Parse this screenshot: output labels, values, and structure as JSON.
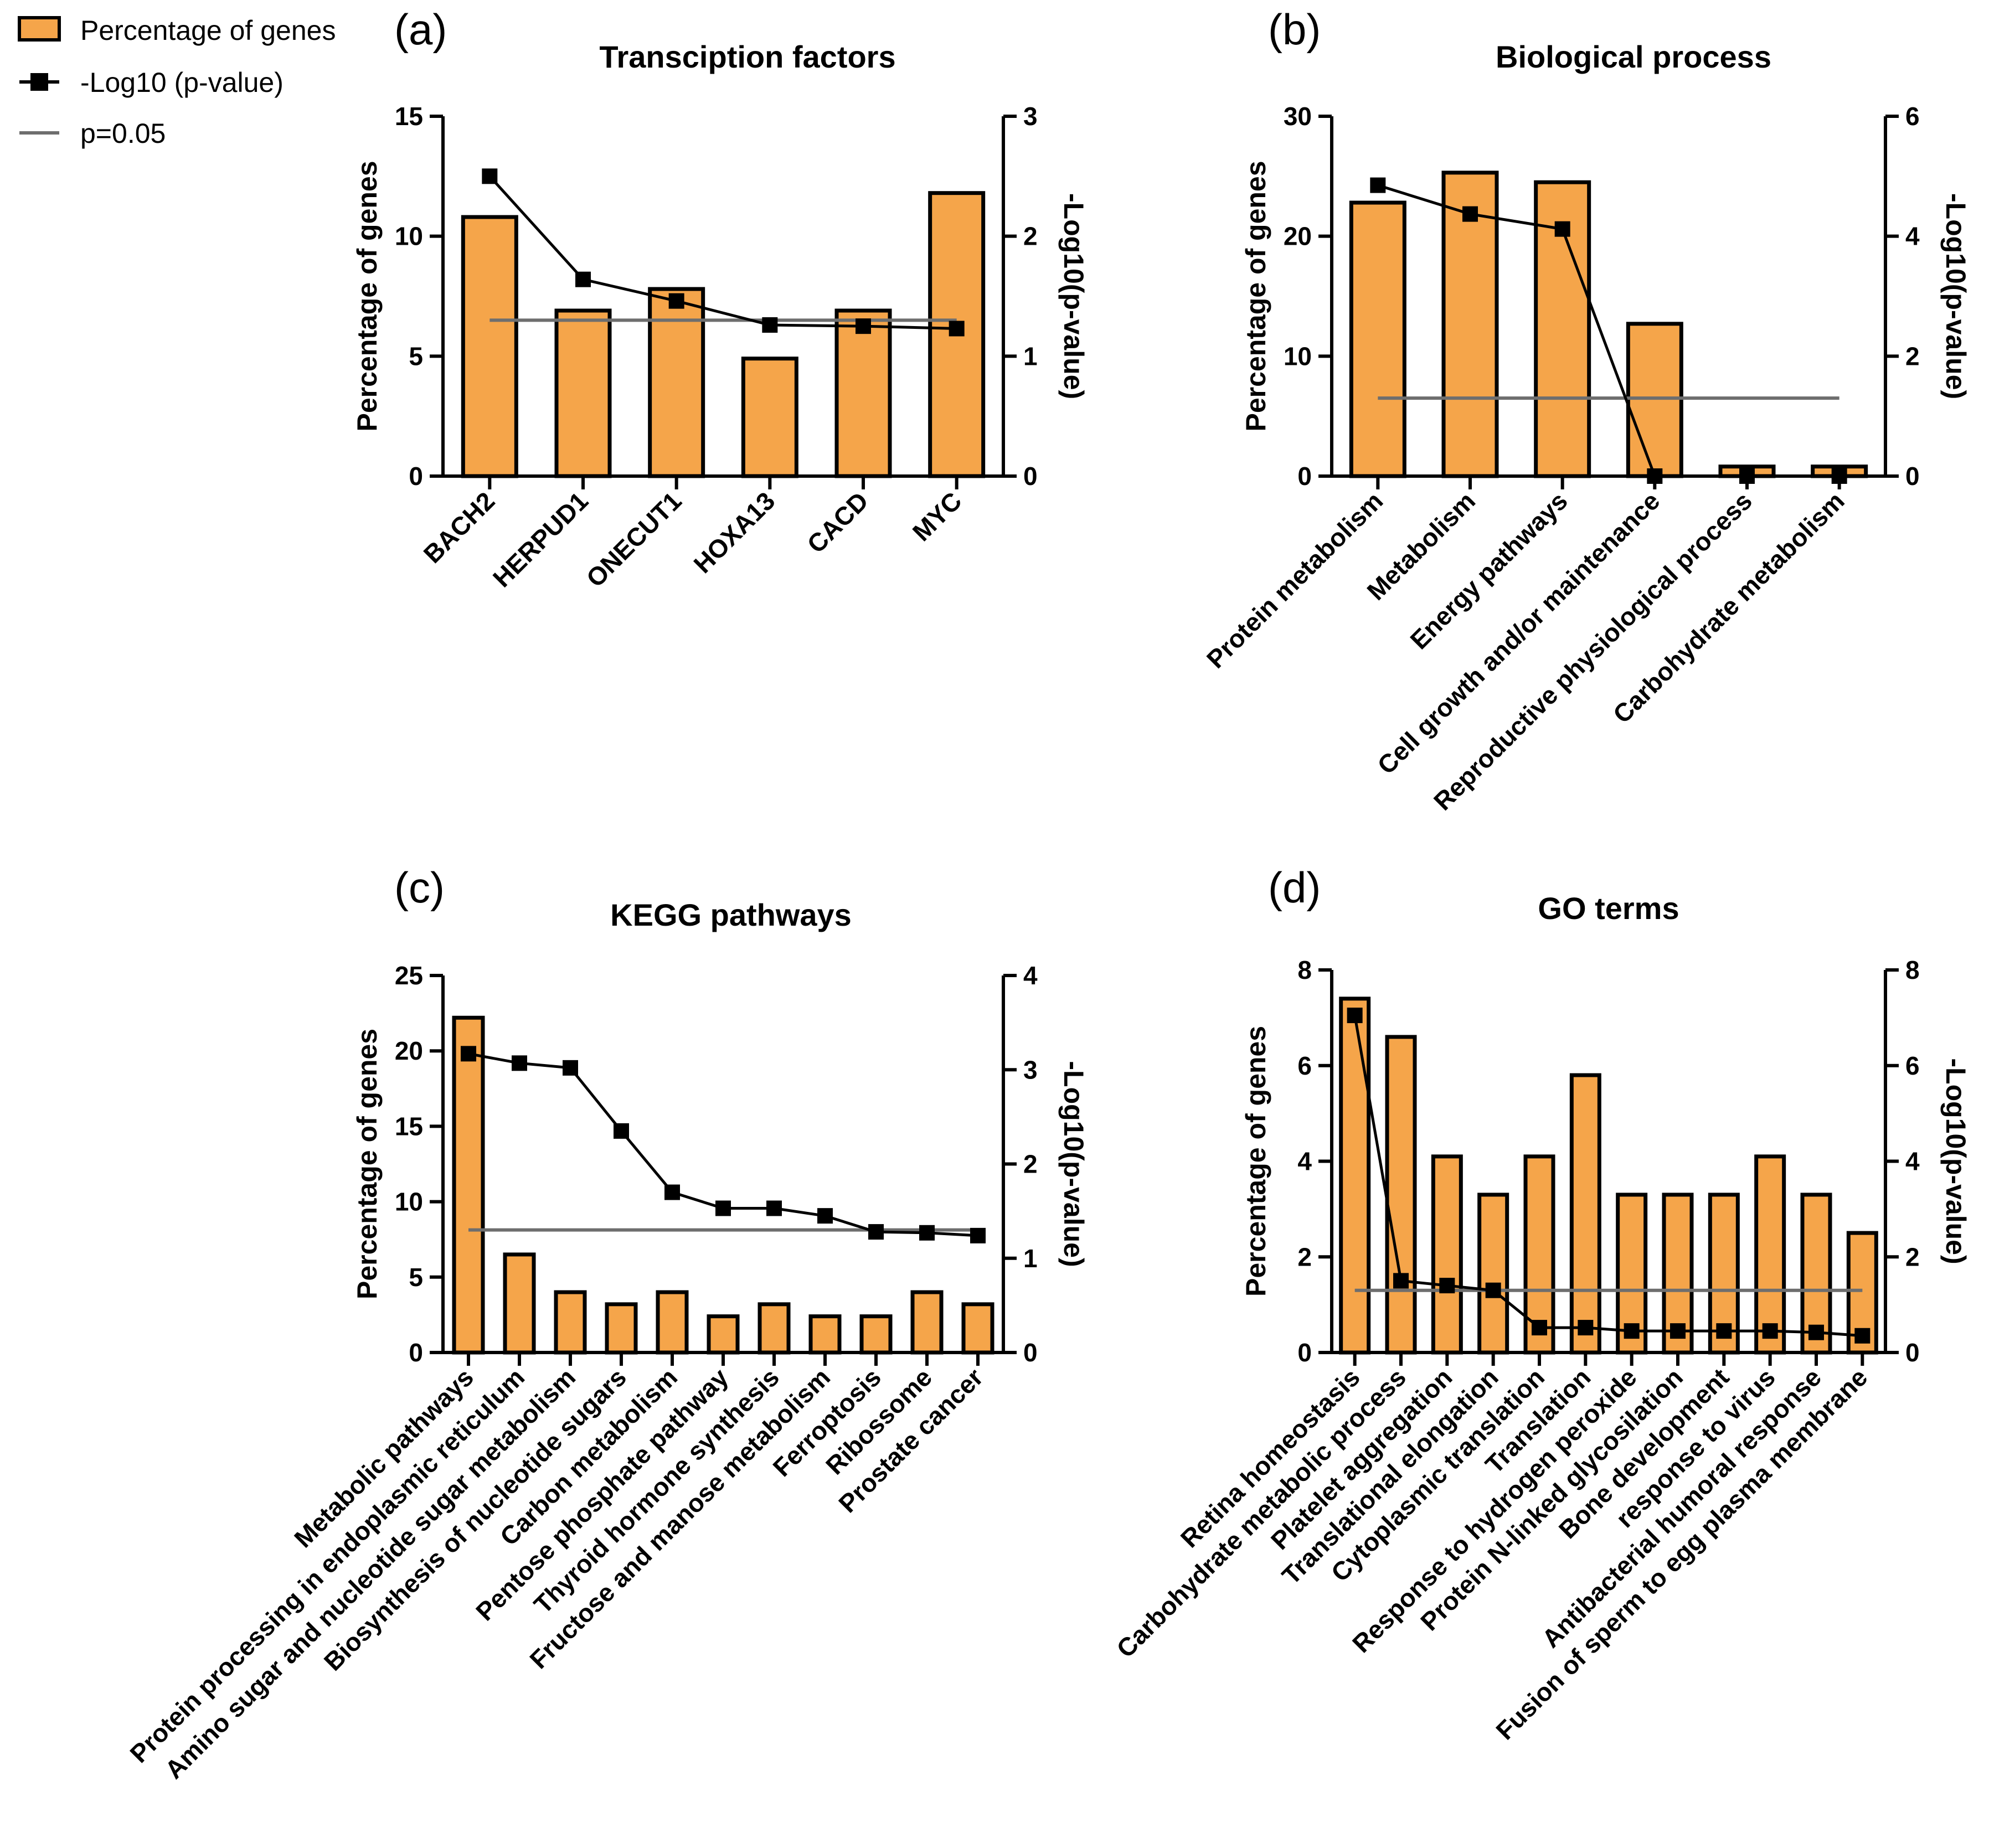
{
  "legend": {
    "bar_label": "Percentage of genes",
    "line_label": "-Log10 (p-value)",
    "threshold_label": "p=0.05"
  },
  "colors": {
    "bar_fill": "#f5a54a",
    "bar_stroke": "#000000",
    "line": "#000000",
    "threshold": "#6e6e6e"
  },
  "chart_data": [
    {
      "type": "bar",
      "panel": "(a)",
      "title": "Transciption factors",
      "categories": [
        "BACH2",
        "HERPUD1",
        "ONECUT1",
        "HOXA13",
        "CACD",
        "MYC"
      ],
      "series": [
        {
          "name": "Percentage of genes",
          "axis": "left",
          "values": [
            10.8,
            6.9,
            7.8,
            4.9,
            6.9,
            11.8
          ]
        },
        {
          "name": "-Log10 (p-value)",
          "axis": "right",
          "type": "line",
          "values": [
            2.5,
            1.64,
            1.46,
            1.26,
            1.25,
            1.23
          ]
        }
      ],
      "threshold": {
        "name": "p=0.05",
        "axis": "right",
        "value": 1.3
      },
      "ylabel": "Percentage of genes",
      "y2label": "-Log10(p-value)",
      "ylim": [
        0,
        15
      ],
      "yticks": [
        0,
        5,
        10,
        15
      ],
      "y2lim": [
        0,
        3
      ],
      "y2ticks": [
        0,
        1,
        2,
        3
      ]
    },
    {
      "type": "bar",
      "panel": "(b)",
      "title": "Biological process",
      "categories": [
        "Protein metabolism",
        "Metabolism",
        "Energy pathways",
        "Cell growth and/or maintenance",
        "Reproductive physiological process",
        "Carbohydrate metabolism"
      ],
      "series": [
        {
          "name": "Percentage of genes",
          "axis": "left",
          "values": [
            22.8,
            25.3,
            24.5,
            12.7,
            0.8,
            0.8
          ]
        },
        {
          "name": "-Log10 (p-value)",
          "axis": "right",
          "type": "line",
          "values": [
            4.85,
            4.37,
            4.12,
            0.0,
            0.0,
            0.0
          ]
        }
      ],
      "threshold": {
        "name": "p=0.05",
        "axis": "right",
        "value": 1.3
      },
      "ylabel": "Percentage of genes",
      "y2label": "-Log10(p-value)",
      "ylim": [
        0,
        30
      ],
      "yticks": [
        0,
        10,
        20,
        30
      ],
      "y2lim": [
        0,
        6
      ],
      "y2ticks": [
        0,
        2,
        4,
        6
      ]
    },
    {
      "type": "bar",
      "panel": "(c)",
      "title": "KEGG pathways",
      "categories": [
        "Metabolic pathways",
        "Protein processing in endoplasmic reticulum",
        "Amino sugar and nucleotide sugar metabolism",
        "Biosynthesis of nucleotide sugars",
        "Carbon metabolism",
        "Pentose phosphate pathway",
        "Thyroid hormone synthesis",
        "Fructose and manose metabolism",
        "Ferroptosis",
        "Ribossome",
        "Prostate cancer"
      ],
      "series": [
        {
          "name": "Percentage of genes",
          "axis": "left",
          "values": [
            22.2,
            6.5,
            4.0,
            3.2,
            4.0,
            2.4,
            3.2,
            2.4,
            2.4,
            4.0,
            3.2
          ]
        },
        {
          "name": "-Log10 (p-value)",
          "axis": "right",
          "type": "line",
          "values": [
            3.17,
            3.07,
            3.02,
            2.35,
            1.7,
            1.53,
            1.53,
            1.45,
            1.28,
            1.27,
            1.24
          ]
        }
      ],
      "threshold": {
        "name": "p=0.05",
        "axis": "right",
        "value": 1.3
      },
      "ylabel": "Percentage of genes",
      "y2label": "-Log10(p-value)",
      "ylim": [
        0,
        25
      ],
      "yticks": [
        0,
        5,
        10,
        15,
        20,
        25
      ],
      "y2lim": [
        0,
        4
      ],
      "y2ticks": [
        0,
        1,
        2,
        3,
        4
      ]
    },
    {
      "type": "bar",
      "panel": "(d)",
      "title": "GO terms",
      "categories": [
        "Retina homeostasis",
        "Carbohydrate metabolic process",
        "Platelet aggregation",
        "Translational elongation",
        "Cytoplasmic translation",
        "Translation",
        "Response to hydrogen peroxide",
        "Protein N-linked glycosilation",
        "Bone development",
        "response to virus",
        "Antibacterial humoral response",
        "Fusion of sperm to egg plasma membrane"
      ],
      "series": [
        {
          "name": "Percentage of genes",
          "axis": "left",
          "values": [
            7.4,
            6.6,
            4.1,
            3.3,
            4.1,
            5.8,
            3.3,
            3.3,
            3.3,
            4.1,
            3.3,
            2.5
          ]
        },
        {
          "name": "-Log10 (p-value)",
          "axis": "right",
          "type": "line",
          "values": [
            7.05,
            1.5,
            1.4,
            1.3,
            0.52,
            0.52,
            0.45,
            0.45,
            0.45,
            0.45,
            0.42,
            0.35
          ]
        }
      ],
      "threshold": {
        "name": "p=0.05",
        "axis": "right",
        "value": 1.3
      },
      "ylabel": "Percentage of genes",
      "y2label": "-Log10(p-value)",
      "ylim": [
        0,
        8
      ],
      "yticks": [
        0,
        2,
        4,
        6,
        8
      ],
      "y2lim": [
        0,
        8
      ],
      "y2ticks": [
        0,
        2,
        4,
        6,
        8
      ]
    }
  ]
}
